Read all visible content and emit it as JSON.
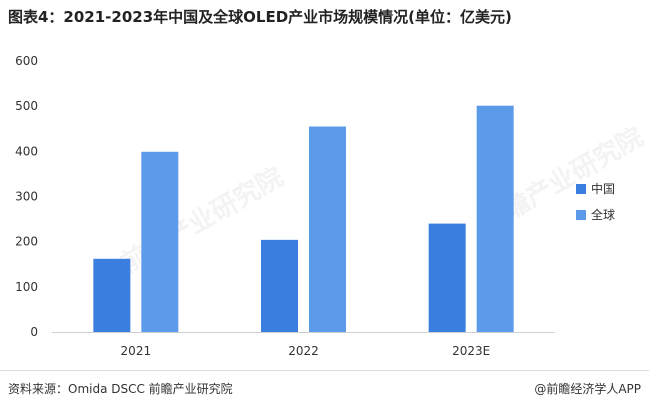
{
  "header": {
    "title": "图表4：2021-2023年中国及全球OLED产业市场规模情况(单位：亿美元)"
  },
  "chart_data": {
    "type": "bar",
    "title": "图表4：2021-2023年中国及全球OLED产业市场规模情况(单位：亿美元)",
    "categories": [
      "2021",
      "2022",
      "2023E"
    ],
    "series": [
      {
        "name": "中国",
        "values": [
          162,
          204,
          240
        ],
        "color": "#3a7fe0"
      },
      {
        "name": "全球",
        "values": [
          399,
          455,
          501
        ],
        "color": "#5b9bea"
      }
    ],
    "ylim": [
      0,
      600
    ],
    "yticks": [
      "0",
      "100",
      "200",
      "300",
      "400",
      "500",
      "600"
    ],
    "xlabel": "",
    "ylabel": "",
    "grid": false,
    "legend": "right"
  },
  "footer": {
    "source": "资料来源：Omida DSCC 前瞻产业研究院",
    "brand": "@前瞻经济学人APP"
  },
  "watermark": {
    "text": "前瞻产业研究院"
  }
}
